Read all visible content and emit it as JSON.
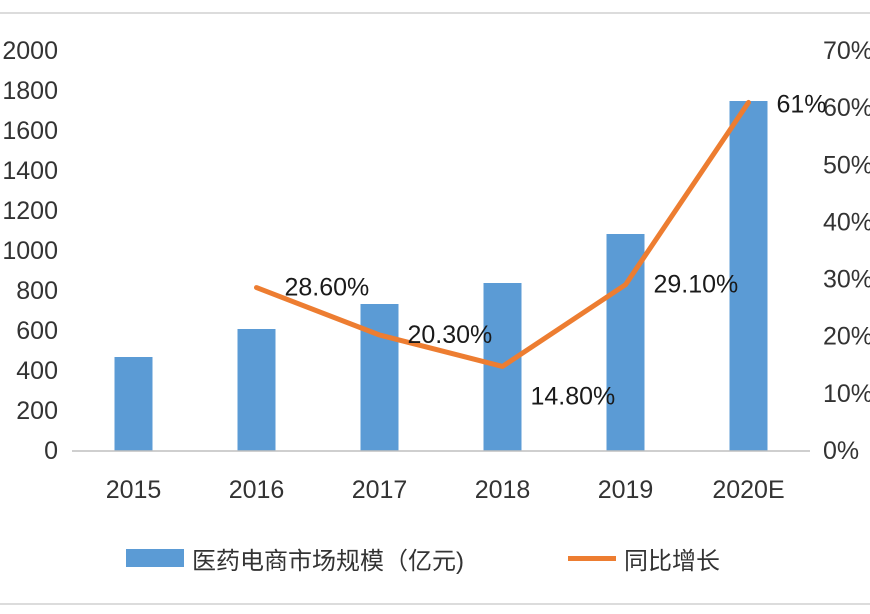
{
  "chart_data": {
    "type": "bar",
    "categories": [
      "2015",
      "2016",
      "2017",
      "2018",
      "2019",
      "2020E"
    ],
    "series": [
      {
        "name": "医药电商市场规模（亿元)",
        "type": "bar",
        "axis": "left",
        "color": "#5b9bd5",
        "values": [
          470,
          610,
          735,
          840,
          1085,
          1750
        ]
      },
      {
        "name": "同比增长",
        "type": "line",
        "axis": "right",
        "color": "#ed7d31",
        "values": [
          null,
          28.6,
          20.3,
          14.8,
          29.1,
          61
        ],
        "labels": [
          "",
          "28.60%",
          "20.30%",
          "14.80%",
          "29.10%",
          "61%"
        ]
      }
    ],
    "y_left": {
      "range": [
        0,
        2000
      ],
      "ticks": [
        "0",
        "200",
        "400",
        "600",
        "800",
        "1000",
        "1200",
        "1400",
        "1600",
        "1800",
        "2000"
      ]
    },
    "y_right": {
      "range": [
        0,
        70
      ],
      "ticks": [
        "0%",
        "10%",
        "20%",
        "30%",
        "40%",
        "50%",
        "60%",
        "70%"
      ]
    },
    "grid": false,
    "legend_position": "bottom"
  }
}
